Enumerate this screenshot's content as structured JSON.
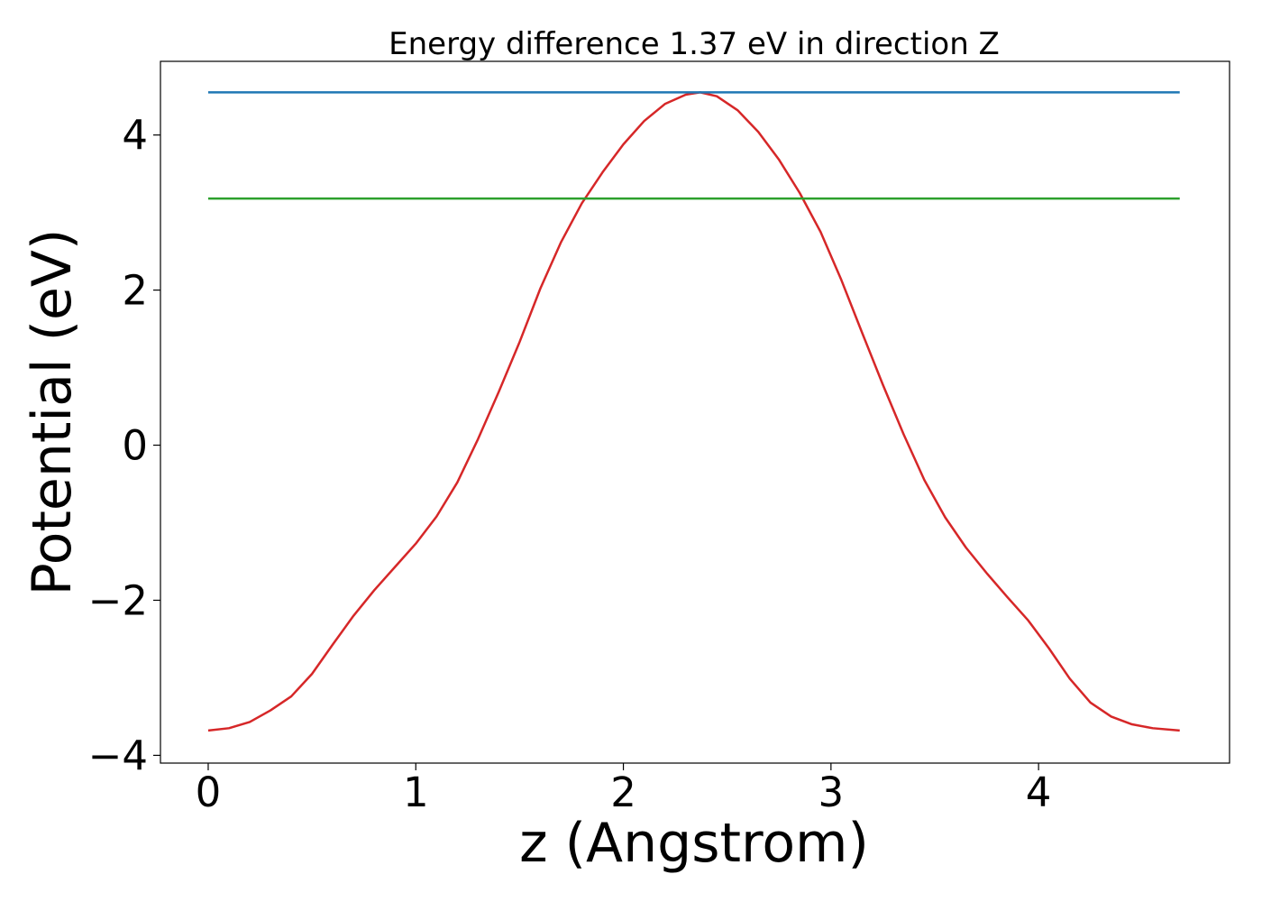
{
  "chart_data": {
    "type": "line",
    "title": "Energy difference 1.37 eV in direction Z",
    "xlabel": "z (Angstrom)",
    "ylabel": "Potential (eV)",
    "xlim": [
      -0.23,
      4.92
    ],
    "ylim": [
      -4.1,
      4.95
    ],
    "x_ticks": [
      0,
      1,
      2,
      3,
      4
    ],
    "x_tick_labels": [
      "0",
      "1",
      "2",
      "3",
      "4"
    ],
    "y_ticks": [
      -4,
      -2,
      0,
      2,
      4
    ],
    "y_tick_labels": [
      "−4",
      "−2",
      "0",
      "2",
      "4"
    ],
    "grid": false,
    "series": [
      {
        "color": "#d62728",
        "x": [
          0,
          0.1,
          0.2,
          0.3,
          0.4,
          0.5,
          0.6,
          0.7,
          0.8,
          0.9,
          1.0,
          1.1,
          1.2,
          1.3,
          1.4,
          1.5,
          1.6,
          1.7,
          1.8,
          1.9,
          2.0,
          2.1,
          2.2,
          2.3,
          2.37,
          2.45,
          2.55,
          2.65,
          2.75,
          2.85,
          2.95,
          3.05,
          3.15,
          3.25,
          3.35,
          3.45,
          3.55,
          3.65,
          3.75,
          3.85,
          3.95,
          4.05,
          4.15,
          4.25,
          4.35,
          4.45,
          4.55,
          4.68
        ],
        "y": [
          -3.68,
          -3.65,
          -3.57,
          -3.42,
          -3.24,
          -2.95,
          -2.57,
          -2.2,
          -1.87,
          -1.57,
          -1.27,
          -0.92,
          -0.48,
          0.08,
          0.69,
          1.33,
          2.02,
          2.62,
          3.12,
          3.52,
          3.88,
          4.18,
          4.4,
          4.52,
          4.55,
          4.5,
          4.32,
          4.04,
          3.68,
          3.25,
          2.75,
          2.13,
          1.45,
          0.78,
          0.14,
          -0.45,
          -0.93,
          -1.32,
          -1.65,
          -1.96,
          -2.26,
          -2.62,
          -3.01,
          -3.32,
          -3.5,
          -3.6,
          -3.65,
          -3.68
        ]
      },
      {
        "color": "#1f77b4",
        "x": [
          0,
          4.68
        ],
        "y": [
          4.55,
          4.55
        ]
      },
      {
        "color": "#2ca02c",
        "x": [
          0,
          4.68
        ],
        "y": [
          3.18,
          3.18
        ]
      }
    ]
  }
}
